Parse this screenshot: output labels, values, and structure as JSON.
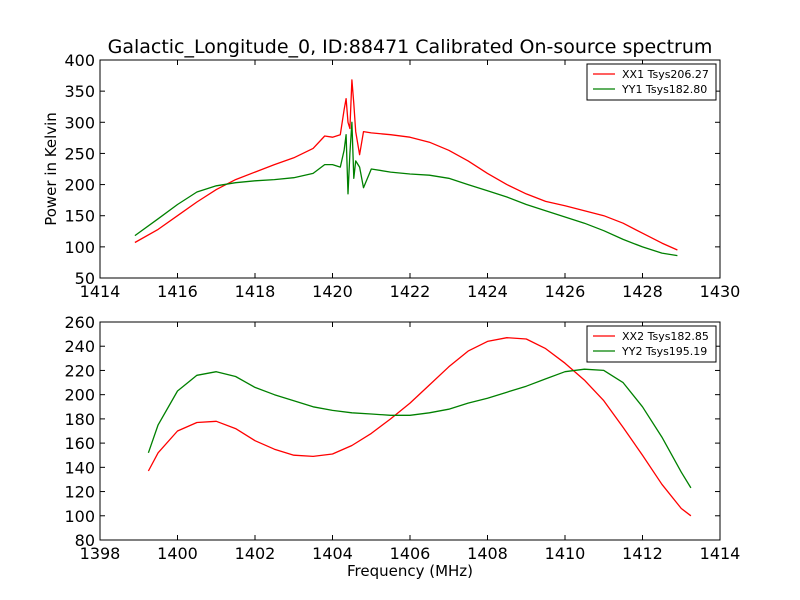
{
  "chart_data": [
    {
      "type": "line",
      "title": "Galactic_Longitude_0, ID:88471 Calibrated On-source spectrum",
      "xlabel": "",
      "ylabel": "Power in Kelvin",
      "xlim": [
        1414,
        1430
      ],
      "ylim": [
        50,
        400
      ],
      "xticks": [
        1414,
        1416,
        1418,
        1420,
        1422,
        1424,
        1426,
        1428,
        1430
      ],
      "yticks": [
        50,
        100,
        150,
        200,
        250,
        300,
        350,
        400
      ],
      "legend_position": "top-right",
      "series": [
        {
          "name": "XX1 Tsys206.27",
          "color": "#ff0000",
          "x": [
            1414.9,
            1415.5,
            1416.0,
            1416.5,
            1417.0,
            1417.5,
            1418.0,
            1418.5,
            1419.0,
            1419.5,
            1419.8,
            1420.0,
            1420.2,
            1420.3,
            1420.35,
            1420.4,
            1420.45,
            1420.5,
            1420.55,
            1420.6,
            1420.7,
            1420.8,
            1421.0,
            1421.5,
            1422.0,
            1422.5,
            1423.0,
            1423.5,
            1424.0,
            1424.5,
            1425.0,
            1425.5,
            1426.0,
            1426.5,
            1427.0,
            1427.5,
            1428.0,
            1428.5,
            1428.9
          ],
          "values": [
            107,
            128,
            150,
            172,
            192,
            208,
            220,
            232,
            243,
            258,
            278,
            276,
            280,
            320,
            338,
            300,
            290,
            368,
            330,
            285,
            248,
            285,
            283,
            280,
            276,
            268,
            255,
            238,
            218,
            200,
            185,
            173,
            166,
            158,
            150,
            138,
            122,
            106,
            95
          ]
        },
        {
          "name": "YY1 Tsys182.80",
          "color": "#008000",
          "x": [
            1414.9,
            1415.5,
            1416.0,
            1416.5,
            1417.0,
            1417.5,
            1418.0,
            1418.5,
            1419.0,
            1419.5,
            1419.8,
            1420.0,
            1420.2,
            1420.3,
            1420.35,
            1420.4,
            1420.45,
            1420.5,
            1420.55,
            1420.6,
            1420.7,
            1420.8,
            1421.0,
            1421.5,
            1422.0,
            1422.5,
            1423.0,
            1423.5,
            1424.0,
            1424.5,
            1425.0,
            1425.5,
            1426.0,
            1426.5,
            1427.0,
            1427.5,
            1428.0,
            1428.5,
            1428.9
          ],
          "values": [
            118,
            145,
            168,
            188,
            198,
            203,
            206,
            208,
            211,
            218,
            232,
            232,
            228,
            255,
            280,
            185,
            250,
            300,
            210,
            238,
            228,
            195,
            225,
            220,
            217,
            215,
            210,
            200,
            190,
            180,
            168,
            158,
            148,
            138,
            126,
            112,
            100,
            90,
            86
          ]
        }
      ]
    },
    {
      "type": "line",
      "title": "",
      "xlabel": "Frequency (MHz)",
      "ylabel": "",
      "xlim": [
        1398,
        1414
      ],
      "ylim": [
        80,
        260
      ],
      "xticks": [
        1398,
        1400,
        1402,
        1404,
        1406,
        1408,
        1410,
        1412,
        1414
      ],
      "yticks": [
        80,
        100,
        120,
        140,
        160,
        180,
        200,
        220,
        240,
        260
      ],
      "legend_position": "top-right",
      "series": [
        {
          "name": "XX2 Tsys182.85",
          "color": "#ff0000",
          "x": [
            1399.25,
            1399.5,
            1400.0,
            1400.5,
            1401.0,
            1401.5,
            1402.0,
            1402.5,
            1403.0,
            1403.5,
            1404.0,
            1404.5,
            1405.0,
            1405.5,
            1406.0,
            1406.5,
            1407.0,
            1407.5,
            1408.0,
            1408.5,
            1409.0,
            1409.5,
            1410.0,
            1410.5,
            1411.0,
            1411.5,
            1412.0,
            1412.5,
            1413.0,
            1413.25
          ],
          "values": [
            137,
            152,
            170,
            177,
            178,
            172,
            162,
            155,
            150,
            149,
            151,
            158,
            168,
            180,
            193,
            208,
            223,
            236,
            244,
            247,
            246,
            238,
            226,
            212,
            195,
            173,
            150,
            126,
            106,
            100
          ]
        },
        {
          "name": "YY2 Tsys195.19",
          "color": "#008000",
          "x": [
            1399.25,
            1399.5,
            1400.0,
            1400.5,
            1401.0,
            1401.5,
            1402.0,
            1402.5,
            1403.0,
            1403.5,
            1404.0,
            1404.5,
            1405.0,
            1405.5,
            1406.0,
            1406.5,
            1407.0,
            1407.5,
            1408.0,
            1408.5,
            1409.0,
            1409.5,
            1410.0,
            1410.5,
            1411.0,
            1411.5,
            1412.0,
            1412.5,
            1413.0,
            1413.25
          ],
          "values": [
            152,
            175,
            203,
            216,
            219,
            215,
            206,
            200,
            195,
            190,
            187,
            185,
            184,
            183,
            183,
            185,
            188,
            193,
            197,
            202,
            207,
            213,
            219,
            221,
            220,
            210,
            190,
            165,
            136,
            123
          ]
        }
      ]
    }
  ]
}
